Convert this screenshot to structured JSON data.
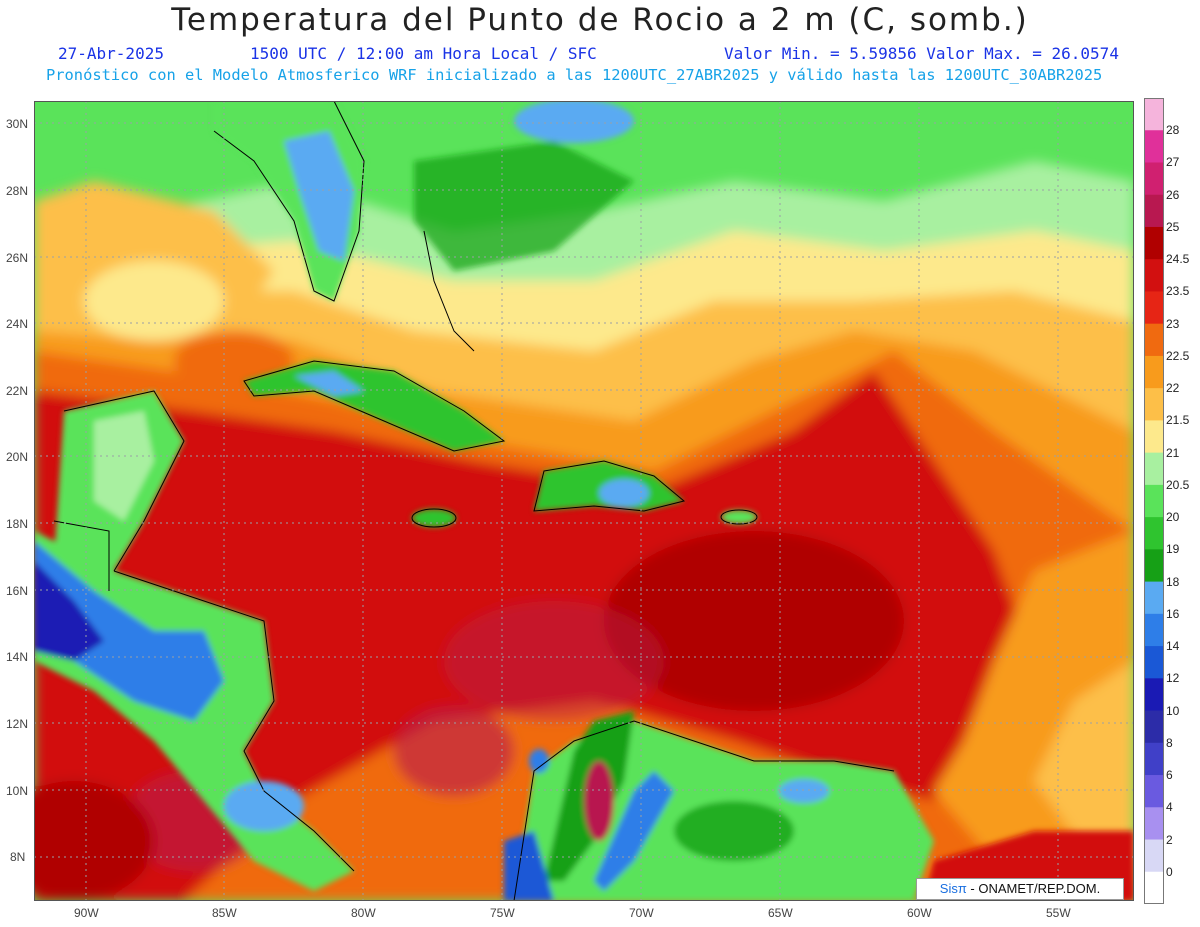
{
  "title": "Temperatura del Punto de Rocio a 2 m (C, somb.)",
  "line1": {
    "date": "27-Abr-2025",
    "time": "1500 UTC / 12:00 am Hora Local / SFC",
    "minmax": "Valor Min. = 5.59856  Valor Max. = 26.0574"
  },
  "line2": "Pronóstico con el Modelo Atmosferico WRF inicializado a las 1200UTC_27ABR2025 y válido hasta las  1200UTC_30ABR2025",
  "axes": {
    "lat_labels": [
      "30N",
      "28N",
      "26N",
      "24N",
      "22N",
      "20N",
      "18N",
      "16N",
      "14N",
      "12N",
      "10N",
      "8N"
    ],
    "lon_labels": [
      "90W",
      "85W",
      "80W",
      "75W",
      "70W",
      "65W",
      "60W",
      "55W"
    ]
  },
  "colorbar": {
    "labels": [
      "28",
      "27",
      "26",
      "25",
      "24.5",
      "23.5",
      "23",
      "22.5",
      "22",
      "21.5",
      "21",
      "20.5",
      "20",
      "19",
      "18",
      "16",
      "14",
      "12",
      "10",
      "8",
      "6",
      "4",
      "2",
      "0"
    ],
    "colors": [
      "#f5b4dc",
      "#e0309a",
      "#d02070",
      "#b81850",
      "#b00000",
      "#d21010",
      "#e62515",
      "#f06a10",
      "#f89b1c",
      "#fdbf48",
      "#fde98c",
      "#a8f0a0",
      "#5ae35a",
      "#2fc42f",
      "#16a016",
      "#5aaaf2",
      "#2e7ee8",
      "#1a58d6",
      "#1a1ab4",
      "#2c2ca8",
      "#4040c8",
      "#6a5ae0",
      "#a890f0",
      "#d8d8f5",
      "#ffffff"
    ]
  },
  "credit": {
    "brand": "Sisπ",
    "text": " - ONAMET/REP.DOM."
  },
  "colors": {
    "ocean_high": "#d21010",
    "ocean_very_high": "#b00000",
    "magenta": "#b01e68"
  }
}
